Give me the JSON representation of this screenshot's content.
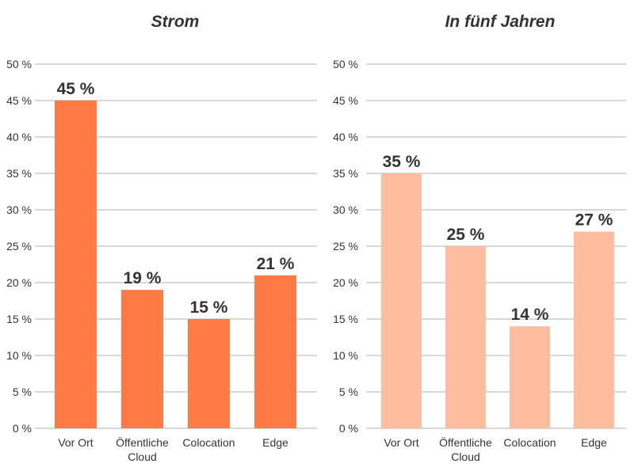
{
  "chart_data": [
    {
      "type": "bar",
      "title": "Strom",
      "categories": [
        "Vor Ort",
        "Öffentliche Cloud",
        "Colocation",
        "Edge"
      ],
      "category_lines": [
        [
          "Vor Ort"
        ],
        [
          "Öffentliche",
          "Cloud"
        ],
        [
          "Colocation"
        ],
        [
          "Edge"
        ]
      ],
      "values": [
        45,
        19,
        15,
        21
      ],
      "value_labels": [
        "45 %",
        "19 %",
        "15 %",
        "21 %"
      ],
      "ylim": [
        0,
        50
      ],
      "yticks": [
        0,
        5,
        10,
        15,
        20,
        25,
        30,
        35,
        40,
        45,
        50
      ],
      "ytick_labels": [
        "0 %",
        "5 %",
        "10 %",
        "15 %",
        "20 %",
        "25 %",
        "30 %",
        "35 %",
        "40 %",
        "45 %",
        "50 %"
      ],
      "xlabel": "",
      "ylabel": "",
      "grid": true,
      "color": "#ff7a45"
    },
    {
      "type": "bar",
      "title": "In fünf Jahren",
      "categories": [
        "Vor Ort",
        "Öffentliche Cloud",
        "Colocation",
        "Edge"
      ],
      "category_lines": [
        [
          "Vor Ort"
        ],
        [
          "Öffentliche",
          "Cloud"
        ],
        [
          "Colocation"
        ],
        [
          "Edge"
        ]
      ],
      "values": [
        35,
        25,
        14,
        27
      ],
      "value_labels": [
        "35 %",
        "25 %",
        "14 %",
        "27 %"
      ],
      "ylim": [
        0,
        50
      ],
      "yticks": [
        0,
        5,
        10,
        15,
        20,
        25,
        30,
        35,
        40,
        45,
        50
      ],
      "ytick_labels": [
        "0 %",
        "5 %",
        "10 %",
        "15 %",
        "20 %",
        "25 %",
        "30 %",
        "35 %",
        "40 %",
        "45 %",
        "50 %"
      ],
      "xlabel": "",
      "ylabel": "",
      "grid": true,
      "color": "#ffbda0"
    }
  ]
}
